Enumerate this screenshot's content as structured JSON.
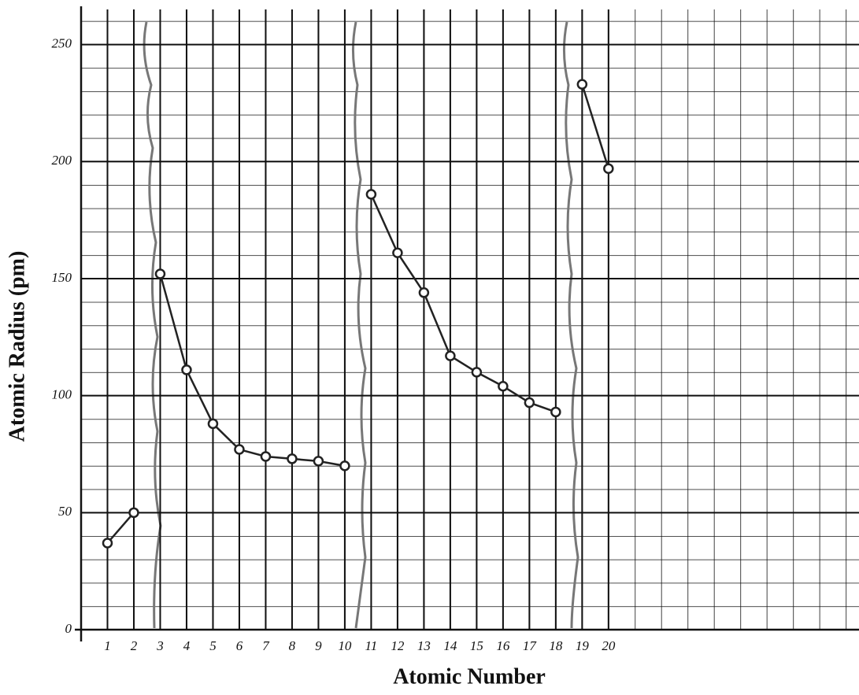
{
  "chart_data": {
    "type": "line",
    "x_label": "Atomic Number",
    "y_label": "Atomic Radius (pm)",
    "series": [
      {
        "color": "#222222",
        "x": [
          1,
          2
        ],
        "values": [
          37,
          50
        ]
      },
      {
        "color": "#222222",
        "x": [
          3,
          4,
          5,
          6,
          7,
          8,
          9,
          10
        ],
        "values": [
          152,
          111,
          88,
          77,
          74,
          73,
          72,
          70
        ]
      },
      {
        "color": "#222222",
        "x": [
          11,
          12,
          13,
          14,
          15,
          16,
          17,
          18
        ],
        "values": [
          186,
          161,
          144,
          117,
          110,
          104,
          97,
          93
        ]
      },
      {
        "color": "#222222",
        "x": [
          19,
          20
        ],
        "values": [
          233,
          197
        ]
      }
    ],
    "xlim": [
      0,
      29.5
    ],
    "ylim": [
      0,
      265
    ],
    "xticks": [
      1,
      2,
      3,
      4,
      5,
      6,
      7,
      8,
      9,
      10,
      11,
      12,
      13,
      14,
      15,
      16,
      17,
      18,
      19,
      20
    ],
    "yticks": [
      0,
      50,
      100,
      150,
      200,
      250
    ],
    "grid": true
  }
}
